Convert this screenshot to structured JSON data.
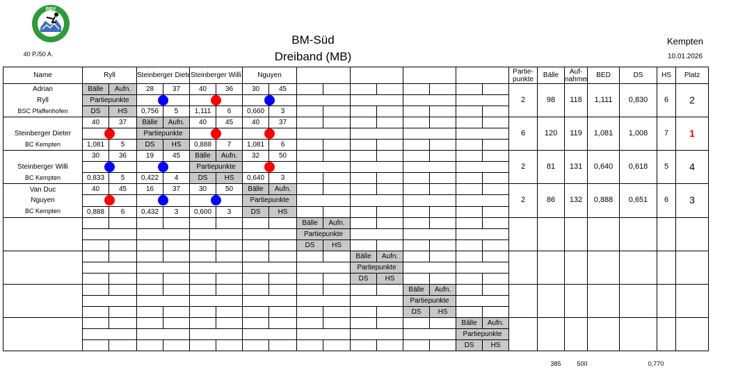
{
  "header": {
    "title_line1": "BM-Süd",
    "title_line2": "Dreiband  (MB)",
    "location": "Kempten",
    "date": "10.01.2026",
    "distance": "40 P./50 A.",
    "logo_text": "BBV"
  },
  "columns": {
    "name": "Name",
    "players": [
      "Ryll",
      "Steinberger Diete",
      "Steinberger Willi",
      "Nguyen"
    ],
    "stats": [
      "Partie-\npunkte",
      "Bälle",
      "Auf-\nnahmen",
      "BED",
      "DS",
      "HS",
      "Platz"
    ]
  },
  "labels": {
    "baelle": "Bälle",
    "aufn": "Aufn.",
    "partiepunkte": "Partiepunkte",
    "ds": "DS",
    "hs": "HS"
  },
  "players": [
    {
      "first": "Adrian",
      "last": "Ryll",
      "club": "BSC Pfaffenhofen",
      "games": [
        null,
        {
          "b": "28",
          "a": "37",
          "dot": "blue",
          "ds": "0,756",
          "hs": "5"
        },
        {
          "b": "40",
          "a": "36",
          "dot": "red",
          "ds": "1,111",
          "hs": "6"
        },
        {
          "b": "30",
          "a": "45",
          "dot": "blue",
          "ds": "0,660",
          "hs": "3"
        }
      ],
      "stats": {
        "pp": "2",
        "baelle": "98",
        "aufn": "118",
        "bed": "1,111",
        "ds": "0,830",
        "hs": "6",
        "platz": "2"
      }
    },
    {
      "first": "",
      "last": "Steinberger Dieter",
      "club": "BC Kempten",
      "games": [
        {
          "b": "40",
          "a": "37",
          "dot": "red",
          "ds": "1,081",
          "hs": "5"
        },
        null,
        {
          "b": "40",
          "a": "45",
          "dot": "red",
          "ds": "0,888",
          "hs": "7"
        },
        {
          "b": "40",
          "a": "37",
          "dot": "red",
          "ds": "1,081",
          "hs": "6"
        }
      ],
      "stats": {
        "pp": "6",
        "baelle": "120",
        "aufn": "119",
        "bed": "1,081",
        "ds": "1,008",
        "hs": "7",
        "platz": "1"
      }
    },
    {
      "first": "",
      "last": "Steinberger Willi",
      "club": "BC Kempten",
      "games": [
        {
          "b": "30",
          "a": "36",
          "dot": "blue",
          "ds": "0,833",
          "hs": "5"
        },
        {
          "b": "19",
          "a": "45",
          "dot": "blue",
          "ds": "0,422",
          "hs": "4"
        },
        null,
        {
          "b": "32",
          "a": "50",
          "dot": "red",
          "ds": "0,640",
          "hs": "3"
        }
      ],
      "stats": {
        "pp": "2",
        "baelle": "81",
        "aufn": "131",
        "bed": "0,640",
        "ds": "0,618",
        "hs": "5",
        "platz": "4"
      }
    },
    {
      "first": "Van Duc",
      "last": "Nguyen",
      "club": "BC Kempten",
      "games": [
        {
          "b": "40",
          "a": "45",
          "dot": "red",
          "ds": "0,888",
          "hs": "6"
        },
        {
          "b": "16",
          "a": "37",
          "dot": "blue",
          "ds": "0,432",
          "hs": "3"
        },
        {
          "b": "30",
          "a": "50",
          "dot": "blue",
          "ds": "0,600",
          "hs": "3"
        },
        null
      ],
      "stats": {
        "pp": "2",
        "baelle": "86",
        "aufn": "132",
        "bed": "0,888",
        "ds": "0,651",
        "hs": "6",
        "platz": "3"
      }
    }
  ],
  "totals": {
    "baelle": "385",
    "aufn": "500",
    "ds": "0,770"
  },
  "colors": {
    "red": "#ff0000",
    "blue": "#0000ff",
    "grey": "#c8c8c8",
    "winner": "#e00000"
  }
}
